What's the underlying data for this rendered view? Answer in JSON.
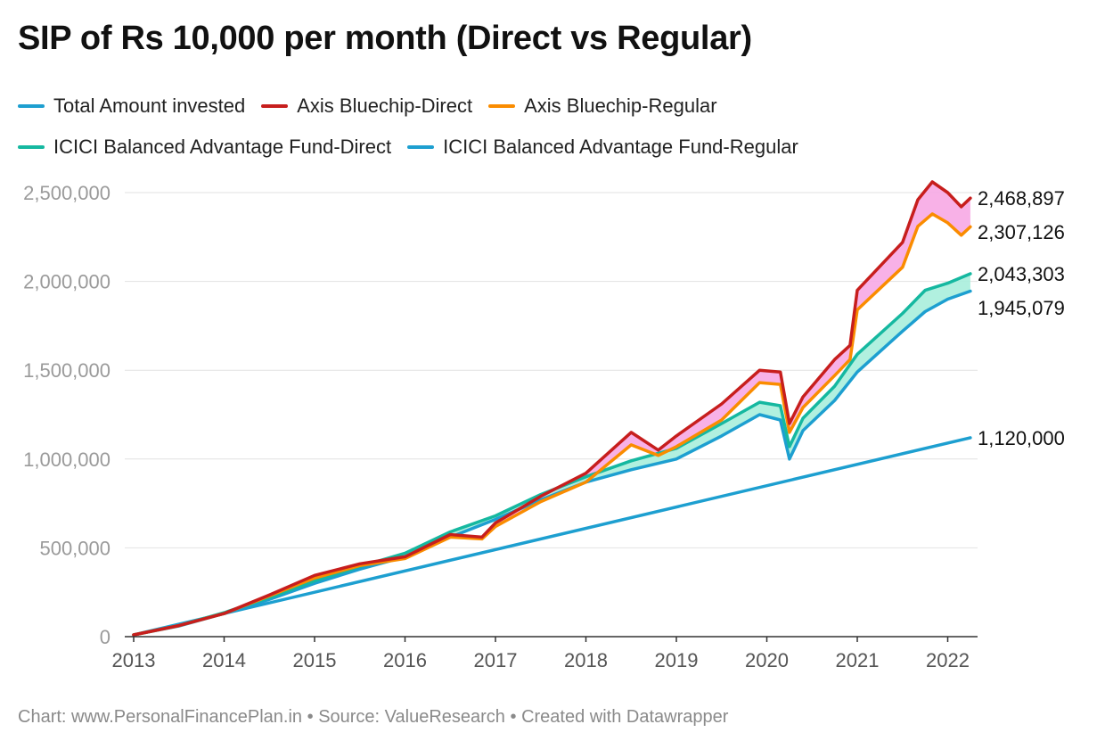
{
  "title": "SIP of Rs 10,000 per month (Direct vs Regular)",
  "footer": {
    "chart_credit": "Chart: www.PersonalFinancePlan.in",
    "separator_1": "•",
    "source": "Source: ValueResearch",
    "separator_2": "•",
    "created_with": "Created with Datawrapper"
  },
  "legend": {
    "rows": [
      [
        {
          "label": "Total Amount invested",
          "color": "#1d9fd0"
        },
        {
          "label": "Axis Bluechip-Direct",
          "color": "#c71e1d"
        },
        {
          "label": "Axis Bluechip-Regular",
          "color": "#fa8c00"
        }
      ],
      [
        {
          "label": "ICICI Balanced Advantage Fund-Direct",
          "color": "#15b8a0"
        },
        {
          "label": "ICICI Balanced Advantage Fund-Regular",
          "color": "#1d9fd0"
        }
      ]
    ]
  },
  "chart_data": {
    "type": "line",
    "title": "SIP of Rs 10,000 per month (Direct vs Regular)",
    "xlabel": "",
    "ylabel": "",
    "xlim": [
      2013,
      2022.33
    ],
    "ylim": [
      0,
      2500000
    ],
    "yticks": [
      0,
      500000,
      1000000,
      1500000,
      2000000,
      2500000
    ],
    "ytick_labels": [
      "0",
      "500,000",
      "1,000,000",
      "1,500,000",
      "2,000,000",
      "2,500,000"
    ],
    "xticks": [
      2013,
      2014,
      2015,
      2016,
      2017,
      2018,
      2019,
      2020,
      2021,
      2022
    ],
    "xtick_labels": [
      "2013",
      "2014",
      "2015",
      "2016",
      "2017",
      "2018",
      "2019",
      "2020",
      "2021",
      "2022"
    ],
    "grid": "horizontal",
    "legend_position": "top",
    "fill_between": [
      {
        "upper": "Axis Bluechip-Direct",
        "lower": "Axis Bluechip-Regular",
        "color": "#f7a8e4"
      },
      {
        "upper": "ICICI Balanced Advantage Fund-Direct",
        "lower": "ICICI Balanced Advantage Fund-Regular",
        "color": "#a9eedc"
      }
    ],
    "series": [
      {
        "name": "Total Amount invested",
        "color": "#1d9fd0",
        "end_label": "1,120,000",
        "points": [
          [
            2013.0,
            10000
          ],
          [
            2022.25,
            1120000
          ]
        ]
      },
      {
        "name": "ICICI Balanced Advantage Fund-Regular",
        "color": "#1d9fd0",
        "end_label": "1,945,079",
        "points": [
          [
            2013.0,
            10000
          ],
          [
            2013.5,
            60000
          ],
          [
            2014.0,
            130000
          ],
          [
            2014.5,
            210000
          ],
          [
            2015.0,
            300000
          ],
          [
            2015.5,
            380000
          ],
          [
            2016.0,
            450000
          ],
          [
            2016.5,
            560000
          ],
          [
            2017.0,
            660000
          ],
          [
            2017.5,
            770000
          ],
          [
            2018.0,
            870000
          ],
          [
            2018.5,
            940000
          ],
          [
            2019.0,
            1000000
          ],
          [
            2019.5,
            1130000
          ],
          [
            2019.92,
            1250000
          ],
          [
            2020.15,
            1220000
          ],
          [
            2020.25,
            1000000
          ],
          [
            2020.4,
            1160000
          ],
          [
            2020.75,
            1330000
          ],
          [
            2021.0,
            1490000
          ],
          [
            2021.5,
            1720000
          ],
          [
            2021.75,
            1830000
          ],
          [
            2022.0,
            1900000
          ],
          [
            2022.25,
            1945079
          ]
        ]
      },
      {
        "name": "ICICI Balanced Advantage Fund-Direct",
        "color": "#15b8a0",
        "end_label": "2,043,303",
        "points": [
          [
            2013.0,
            10000
          ],
          [
            2013.5,
            62000
          ],
          [
            2014.0,
            135000
          ],
          [
            2014.5,
            220000
          ],
          [
            2015.0,
            315000
          ],
          [
            2015.5,
            395000
          ],
          [
            2016.0,
            470000
          ],
          [
            2016.5,
            590000
          ],
          [
            2017.0,
            680000
          ],
          [
            2017.5,
            800000
          ],
          [
            2018.0,
            900000
          ],
          [
            2018.5,
            990000
          ],
          [
            2019.0,
            1060000
          ],
          [
            2019.5,
            1200000
          ],
          [
            2019.92,
            1320000
          ],
          [
            2020.15,
            1300000
          ],
          [
            2020.25,
            1070000
          ],
          [
            2020.4,
            1230000
          ],
          [
            2020.75,
            1410000
          ],
          [
            2021.0,
            1590000
          ],
          [
            2021.5,
            1820000
          ],
          [
            2021.75,
            1950000
          ],
          [
            2022.0,
            1990000
          ],
          [
            2022.25,
            2043303
          ]
        ]
      },
      {
        "name": "Axis Bluechip-Regular",
        "color": "#fa8c00",
        "end_label": "2,307,126",
        "points": [
          [
            2013.0,
            10000
          ],
          [
            2013.5,
            62000
          ],
          [
            2014.0,
            130000
          ],
          [
            2014.5,
            230000
          ],
          [
            2015.0,
            330000
          ],
          [
            2015.5,
            400000
          ],
          [
            2016.0,
            440000
          ],
          [
            2016.5,
            560000
          ],
          [
            2016.85,
            550000
          ],
          [
            2017.0,
            620000
          ],
          [
            2017.5,
            760000
          ],
          [
            2018.0,
            870000
          ],
          [
            2018.5,
            1080000
          ],
          [
            2018.8,
            1020000
          ],
          [
            2019.0,
            1070000
          ],
          [
            2019.5,
            1220000
          ],
          [
            2019.92,
            1430000
          ],
          [
            2020.15,
            1420000
          ],
          [
            2020.25,
            1150000
          ],
          [
            2020.4,
            1290000
          ],
          [
            2020.75,
            1470000
          ],
          [
            2020.92,
            1560000
          ],
          [
            2021.0,
            1840000
          ],
          [
            2021.5,
            2080000
          ],
          [
            2021.67,
            2310000
          ],
          [
            2021.83,
            2380000
          ],
          [
            2022.0,
            2330000
          ],
          [
            2022.15,
            2260000
          ],
          [
            2022.25,
            2307126
          ]
        ]
      },
      {
        "name": "Axis Bluechip-Direct",
        "color": "#c71e1d",
        "end_label": "2,468,897",
        "points": [
          [
            2013.0,
            10000
          ],
          [
            2013.5,
            62000
          ],
          [
            2014.0,
            130000
          ],
          [
            2014.5,
            235000
          ],
          [
            2015.0,
            345000
          ],
          [
            2015.5,
            410000
          ],
          [
            2016.0,
            450000
          ],
          [
            2016.5,
            575000
          ],
          [
            2016.85,
            560000
          ],
          [
            2017.0,
            640000
          ],
          [
            2017.5,
            790000
          ],
          [
            2018.0,
            920000
          ],
          [
            2018.5,
            1150000
          ],
          [
            2018.8,
            1050000
          ],
          [
            2019.0,
            1130000
          ],
          [
            2019.5,
            1310000
          ],
          [
            2019.92,
            1500000
          ],
          [
            2020.15,
            1490000
          ],
          [
            2020.25,
            1200000
          ],
          [
            2020.4,
            1350000
          ],
          [
            2020.75,
            1560000
          ],
          [
            2020.92,
            1640000
          ],
          [
            2021.0,
            1950000
          ],
          [
            2021.5,
            2220000
          ],
          [
            2021.67,
            2460000
          ],
          [
            2021.83,
            2560000
          ],
          [
            2022.0,
            2500000
          ],
          [
            2022.15,
            2420000
          ],
          [
            2022.25,
            2468897
          ]
        ]
      }
    ]
  }
}
